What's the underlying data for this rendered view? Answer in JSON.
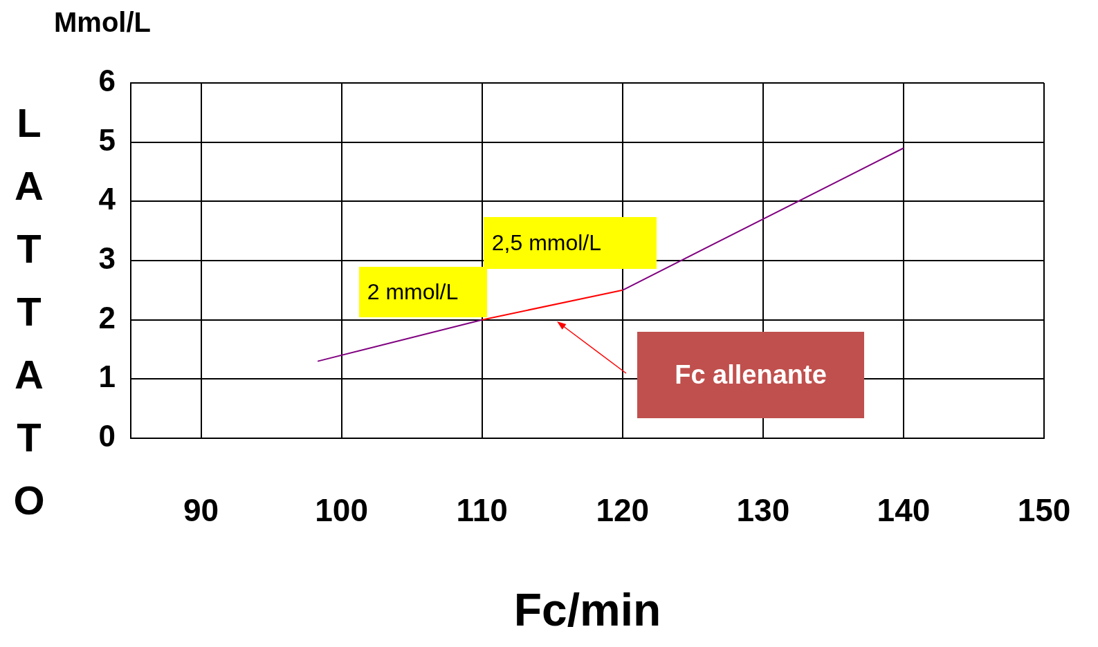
{
  "chart_data": {
    "type": "line",
    "xlabel": "Fc/min",
    "ylabel": "LATTATO",
    "xlim": [
      85,
      150
    ],
    "xticks": [
      90,
      100,
      110,
      120,
      130,
      140,
      150
    ],
    "ylim": [
      0,
      6
    ],
    "yticks": [
      0,
      1,
      2,
      3,
      4,
      5,
      6
    ],
    "grid": true,
    "marker": "none",
    "line_style": "solid",
    "series": [
      {
        "color": "#800080",
        "x": [
          98.3,
          110
        ],
        "values": [
          1.3,
          2.0
        ]
      },
      {
        "color": "#ff0000",
        "x": [
          110,
          120
        ],
        "values": [
          2.0,
          2.5
        ]
      },
      {
        "color": "#800080",
        "x": [
          120,
          140
        ],
        "values": [
          2.5,
          4.9
        ]
      }
    ],
    "annotations": [
      "Mmol/L",
      {
        "text": "2 mmol/L",
        "x": 110,
        "y": 2
      },
      {
        "text": "2,5 mmol/L",
        "x": 120,
        "y": 2.5
      },
      "Fc allenante"
    ]
  }
}
